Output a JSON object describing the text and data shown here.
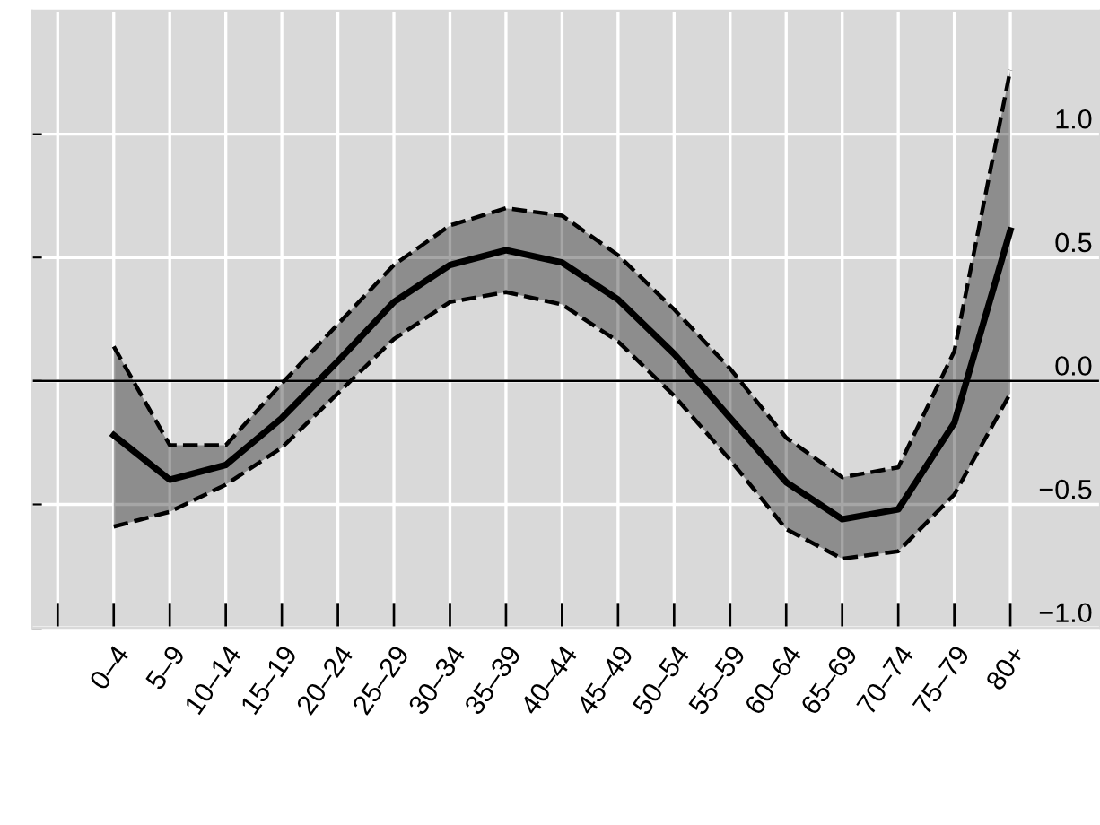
{
  "chart_data": {
    "type": "line",
    "categories": [
      null,
      "0–4",
      "5–9",
      "10–14",
      "15–19",
      "20–24",
      "25–29",
      "30–34",
      "35–39",
      "40–44",
      "45–49",
      "50–54",
      "55–59",
      "60–64",
      "65–69",
      "70–74",
      "75–79",
      "80+"
    ],
    "series": [
      {
        "color": "#000000",
        "values": [
          null,
          -0.22,
          -0.4,
          -0.34,
          -0.15,
          0.08,
          0.32,
          0.47,
          0.53,
          0.48,
          0.33,
          0.11,
          -0.15,
          -0.41,
          -0.56,
          -0.52,
          -0.17,
          0.61
        ],
        "upper": [
          null,
          0.14,
          -0.26,
          -0.26,
          -0.01,
          0.23,
          0.47,
          0.63,
          0.7,
          0.67,
          0.51,
          0.29,
          0.05,
          -0.23,
          -0.39,
          -0.35,
          0.12,
          1.26
        ],
        "lower": [
          null,
          -0.59,
          -0.53,
          -0.42,
          -0.27,
          -0.05,
          0.17,
          0.32,
          0.36,
          0.31,
          0.16,
          -0.06,
          -0.32,
          -0.6,
          -0.72,
          -0.69,
          -0.46,
          -0.05
        ]
      },
      {
        "color": "#000000",
        "line_style": "dashed",
        "values": [
          null,
          0.14,
          -0.26,
          -0.26,
          -0.01,
          0.23,
          0.47,
          0.63,
          0.7,
          0.67,
          0.51,
          0.29,
          0.05,
          -0.23,
          -0.39,
          -0.35,
          0.12,
          1.26
        ]
      },
      {
        "color": "#000000",
        "line_style": "dashed",
        "values": [
          null,
          -0.59,
          -0.53,
          -0.42,
          -0.27,
          -0.05,
          0.17,
          0.32,
          0.36,
          0.31,
          0.16,
          -0.06,
          -0.32,
          -0.6,
          -0.72,
          -0.69,
          -0.46,
          -0.05
        ]
      }
    ],
    "ylim": [
      -1.0,
      1.5
    ],
    "yticks": [
      {
        "value": -1.0,
        "label": "−1.0"
      },
      {
        "value": -0.5,
        "label": "−0.5"
      },
      {
        "value": 0.0,
        "label": "0.0"
      },
      {
        "value": 0.5,
        "label": "0.5"
      },
      {
        "value": 1.0,
        "label": "1.0"
      }
    ],
    "ref_lines": [
      {
        "axis": "y",
        "value": 0,
        "color": "#000000"
      }
    ],
    "grid": true,
    "line_style": "solid",
    "marker": "none",
    "legend": false
  }
}
